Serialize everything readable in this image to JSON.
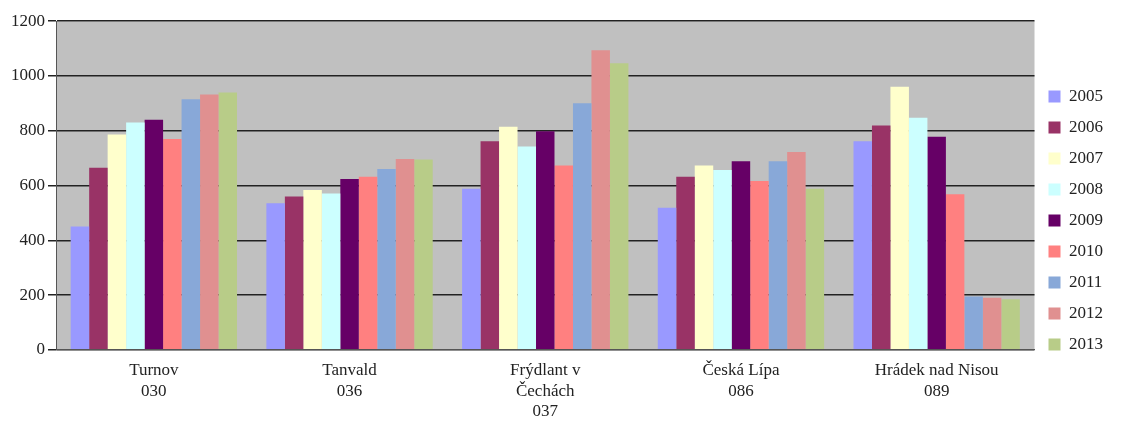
{
  "chart_data": {
    "type": "bar",
    "categories": [
      "Turnov\n030",
      "Tanvald\n036",
      "Frýdlant v\nČechách\n037",
      "Česká Lípa\n086",
      "Hrádek nad Nisou\n089"
    ],
    "series": [
      {
        "name": "2005",
        "color": "#9999ff",
        "values": [
          450,
          535,
          588,
          519,
          762
        ]
      },
      {
        "name": "2006",
        "color": "#993366",
        "values": [
          665,
          560,
          762,
          632,
          819
        ]
      },
      {
        "name": "2007",
        "color": "#ffffcc",
        "values": [
          786,
          584,
          815,
          673,
          961
        ]
      },
      {
        "name": "2008",
        "color": "#ccffff",
        "values": [
          830,
          571,
          742,
          657,
          847
        ]
      },
      {
        "name": "2009",
        "color": "#660066",
        "values": [
          840,
          624,
          798,
          689,
          778
        ]
      },
      {
        "name": "2010",
        "color": "#ff8080",
        "values": [
          770,
          632,
          673,
          616,
          568
        ]
      },
      {
        "name": "2011",
        "color": "#88a8d8",
        "values": [
          915,
          660,
          900,
          689,
          195
        ]
      },
      {
        "name": "2012",
        "color": "#e09090",
        "values": [
          932,
          697,
          1094,
          722,
          190
        ]
      },
      {
        "name": "2013",
        "color": "#b8cc88",
        "values": [
          940,
          695,
          1046,
          588,
          185
        ]
      }
    ],
    "ylim": [
      0,
      1200
    ],
    "yticks": [
      0,
      200,
      400,
      600,
      800,
      1000,
      1200
    ],
    "grid": "y",
    "legend": "right"
  }
}
